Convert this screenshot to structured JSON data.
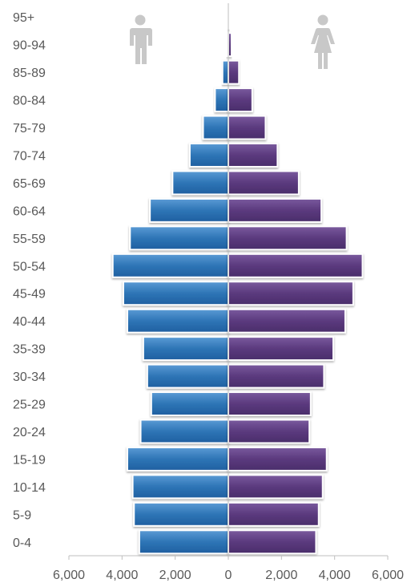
{
  "chart_data": {
    "type": "bar",
    "orientation": "horizontal",
    "layout": "population-pyramid",
    "categories": [
      "0-4",
      "5-9",
      "10-14",
      "15-19",
      "20-24",
      "25-29",
      "30-34",
      "35-39",
      "40-44",
      "45-49",
      "50-54",
      "55-59",
      "60-64",
      "65-69",
      "70-74",
      "75-79",
      "80-84",
      "85-89",
      "90-94",
      "95+"
    ],
    "series": [
      {
        "values": [
          3350,
          3550,
          3600,
          3800,
          3300,
          2900,
          3050,
          3200,
          3800,
          3950,
          4350,
          3700,
          2950,
          2100,
          1450,
          950,
          500,
          220,
          60,
          20
        ],
        "color": "#2e75b6",
        "icon": "male-icon"
      },
      {
        "values": [
          3300,
          3400,
          3550,
          3700,
          3050,
          3100,
          3600,
          3950,
          4400,
          4700,
          5050,
          4450,
          3500,
          2650,
          1850,
          1400,
          900,
          400,
          120,
          40
        ],
        "color": "#5b3a7e",
        "icon": "female-icon"
      }
    ],
    "xlim": [
      -6000,
      6000
    ],
    "x_ticks": [
      -6000,
      -4000,
      -2000,
      0,
      2000,
      4000,
      6000
    ],
    "x_tick_labels": [
      "6,000",
      "4,000",
      "2,000",
      "0",
      "2,000",
      "4,000",
      "6,000"
    ],
    "title": "",
    "xlabel": "",
    "ylabel": "",
    "grid": false,
    "legend": "none (icons top-left / top-right)",
    "icon_color": "#c8c8c8"
  }
}
